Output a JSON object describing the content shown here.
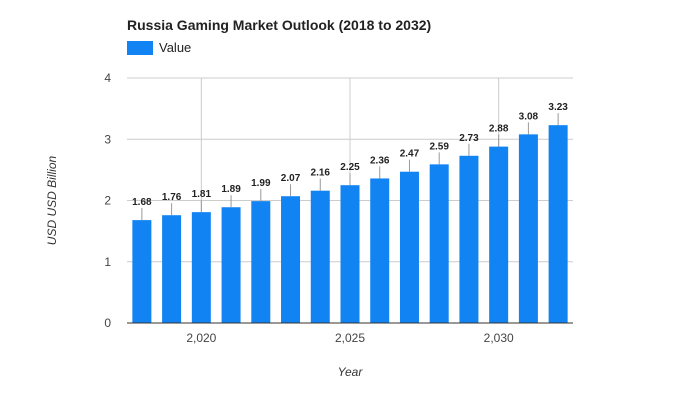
{
  "chart_data": {
    "type": "bar",
    "title": "Russia Gaming Market Outlook (2018 to 2032)",
    "xlabel": "Year",
    "ylabel": "USD USD Billion",
    "x": [
      2018,
      2019,
      2020,
      2021,
      2022,
      2023,
      2024,
      2025,
      2026,
      2027,
      2028,
      2029,
      2030,
      2031,
      2032
    ],
    "series": [
      {
        "name": "Value",
        "color": "#1283f2",
        "values": [
          1.68,
          1.76,
          1.81,
          1.89,
          1.99,
          2.07,
          2.16,
          2.25,
          2.36,
          2.47,
          2.59,
          2.73,
          2.88,
          3.08,
          3.23
        ],
        "labels": [
          "1.68",
          "1.76",
          "1.81",
          "1.89",
          "1.99",
          "2.07",
          "2.16",
          "2.25",
          "2.36",
          "2.47",
          "2.59",
          "2.73",
          "2.88",
          "3.08",
          "3.23"
        ]
      }
    ],
    "ylim": [
      0,
      4
    ],
    "yticks": [
      0,
      1,
      2,
      3,
      4
    ],
    "ytick_labels": [
      "0",
      "1",
      "2",
      "3",
      "4"
    ],
    "xticks": [
      2020,
      2025,
      2030
    ],
    "xtick_labels": [
      "2,020",
      "2,025",
      "2,030"
    ],
    "grid": true,
    "legend_position": "top-left"
  }
}
